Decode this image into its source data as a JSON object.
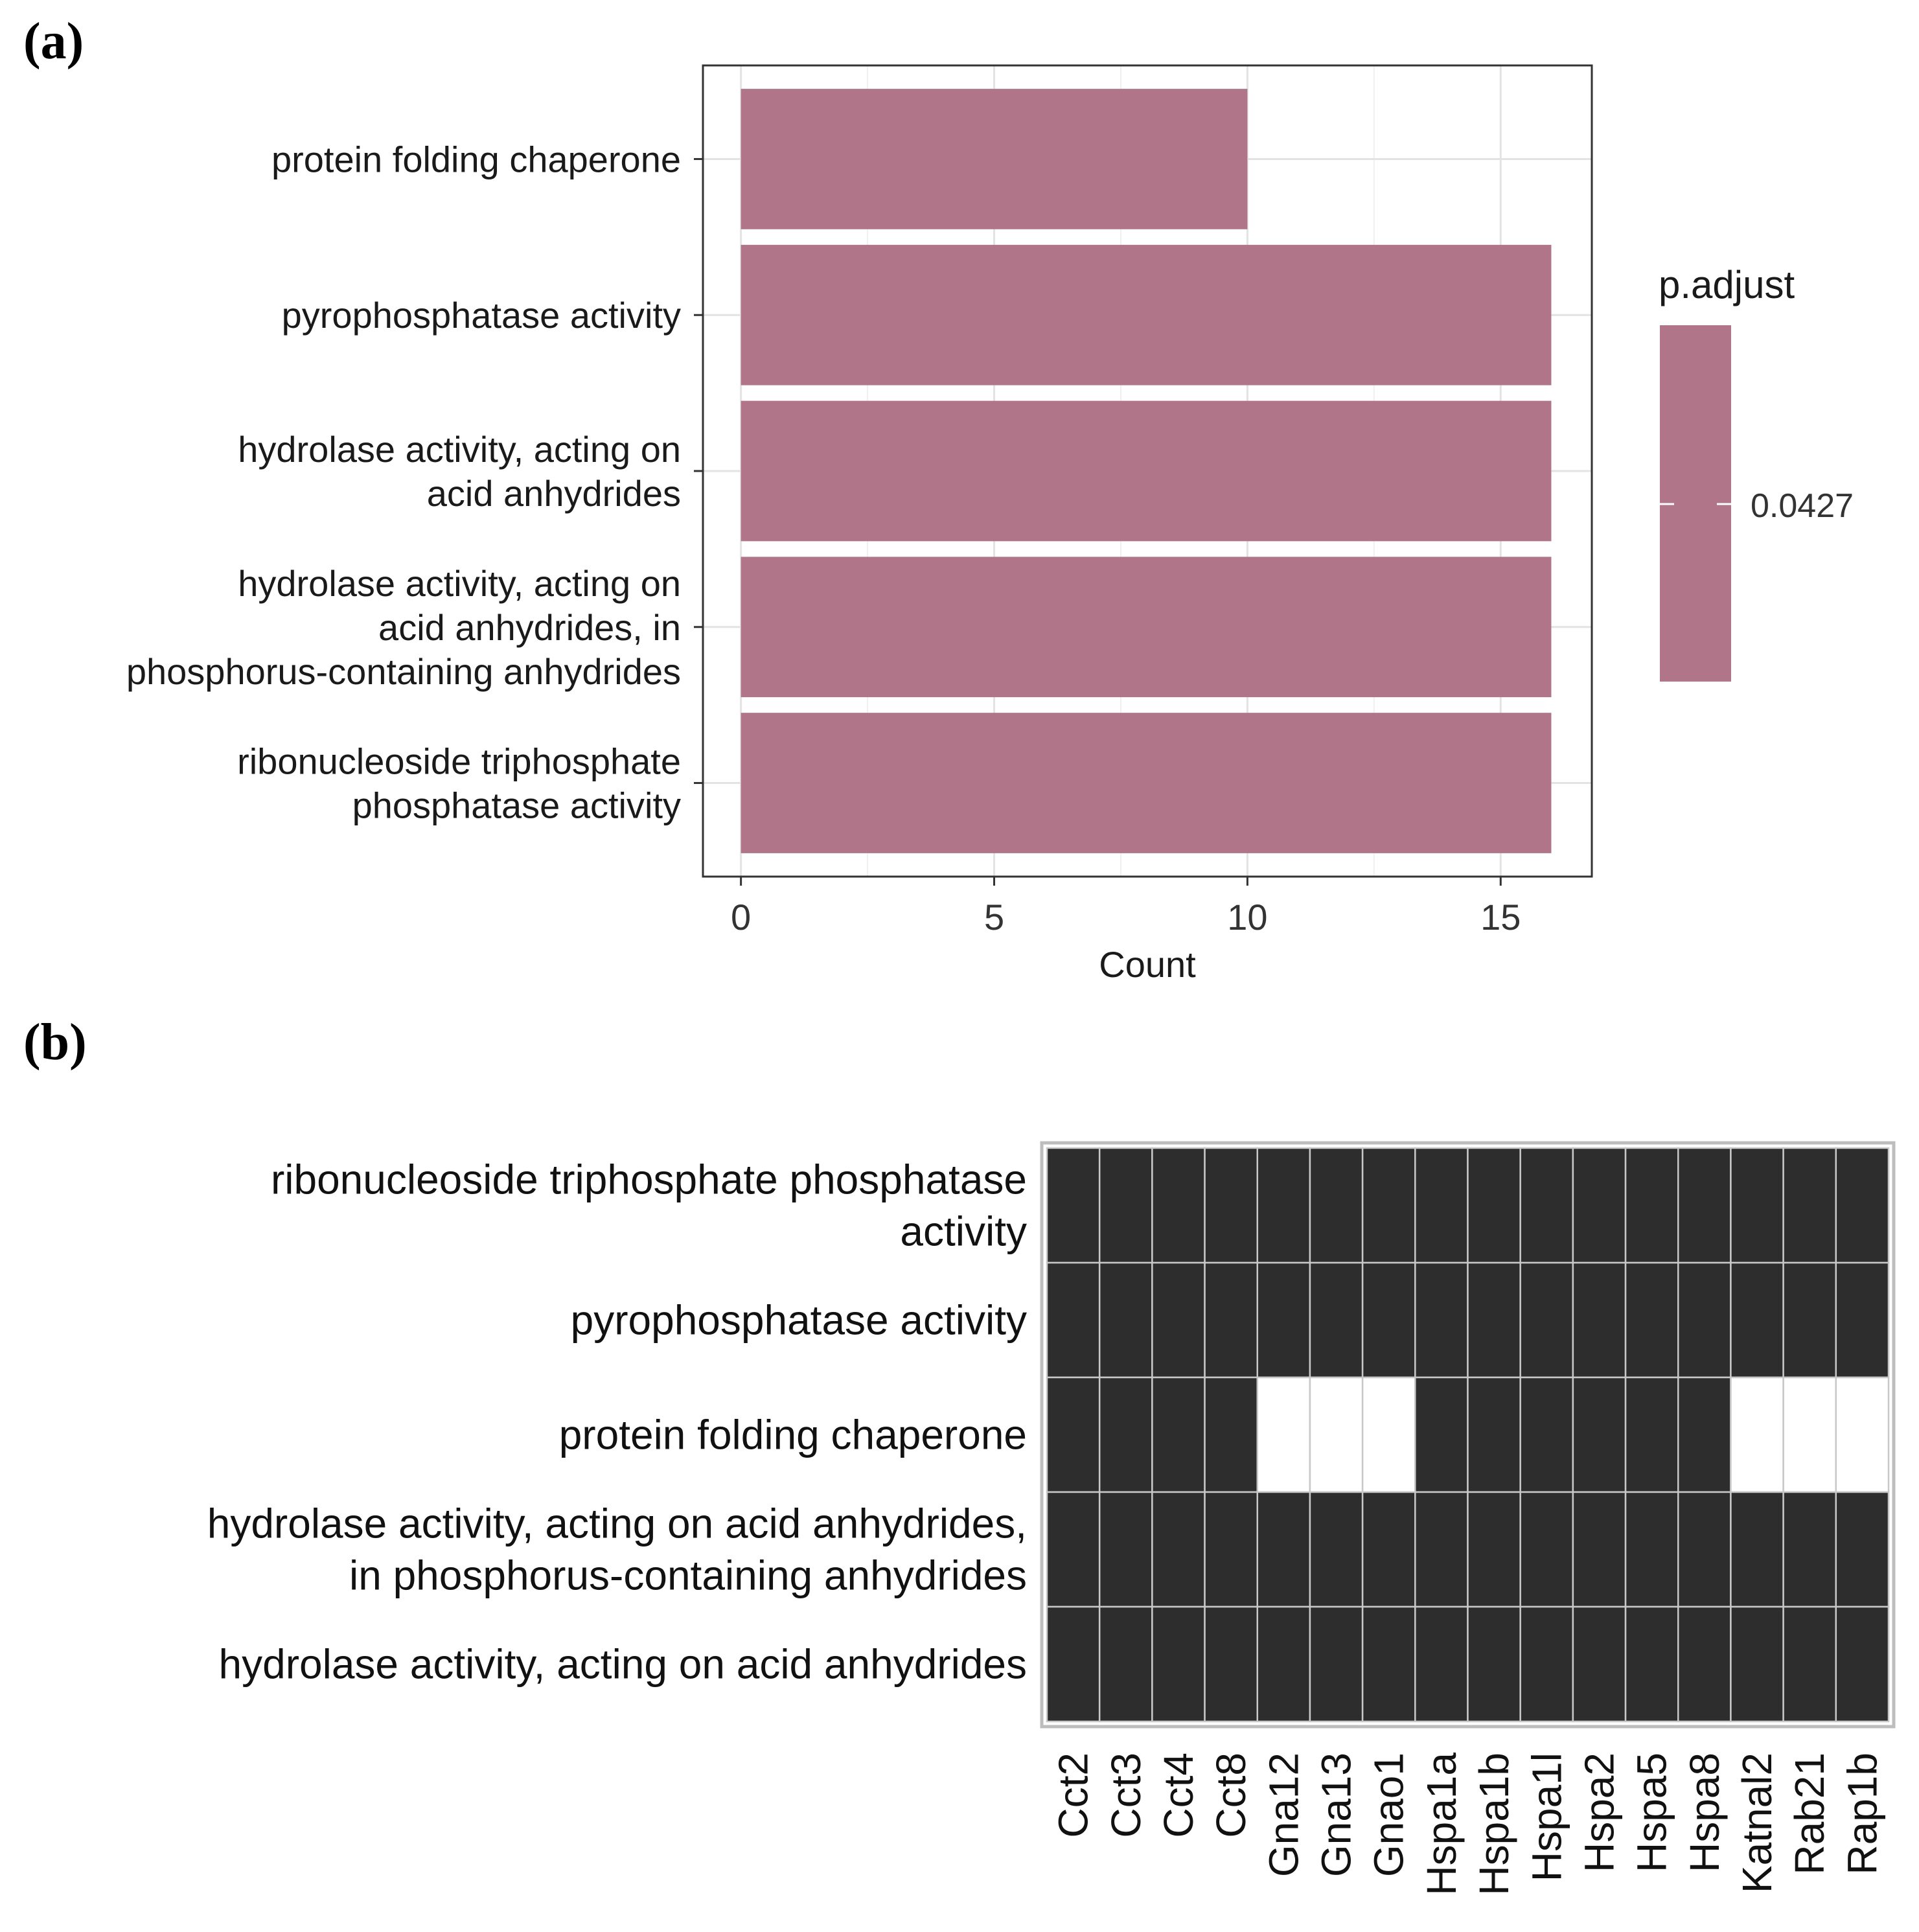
{
  "panels": {
    "a_label": "(a)",
    "b_label": "(b)"
  },
  "chart_data": [
    {
      "type": "bar",
      "orientation": "horizontal",
      "categories": [
        [
          "protein folding chaperone"
        ],
        [
          "pyrophosphatase activity"
        ],
        [
          "hydrolase activity, acting on",
          "acid anhydrides"
        ],
        [
          "hydrolase activity, acting on",
          "acid anhydrides, in",
          "phosphorus-containing anhydrides"
        ],
        [
          "ribonucleoside triphosphate",
          "phosphatase activity"
        ]
      ],
      "values": [
        10,
        16,
        16,
        16,
        16
      ],
      "xlabel": "Count",
      "ylabel": "",
      "xlim": [
        -0.75,
        16.8
      ],
      "xticks": [
        "0",
        "5",
        "10",
        "15"
      ],
      "xtick_values": [
        0,
        5,
        10,
        15
      ],
      "grid": true,
      "bar_color": "#b07589",
      "legend": {
        "title": "p.adjust",
        "label": "0.0427",
        "placement": "right",
        "color": "#b07589"
      }
    },
    {
      "type": "heatmap",
      "rows": [
        [
          "ribonucleoside triphosphate phosphatase",
          "activity"
        ],
        [
          "pyrophosphatase activity"
        ],
        [
          "protein folding chaperone"
        ],
        [
          "hydrolase activity, acting on acid anhydrides,",
          "in phosphorus-containing anhydrides"
        ],
        [
          "hydrolase activity, acting on acid anhydrides"
        ]
      ],
      "columns": [
        "Cct2",
        "Cct3",
        "Cct4",
        "Cct8",
        "Gna12",
        "Gna13",
        "Gnao1",
        "Hspa1a",
        "Hspa1b",
        "Hspa1l",
        "Hspa2",
        "Hspa5",
        "Hspa8",
        "Katnal2",
        "Rab21",
        "Rap1b"
      ],
      "values": [
        [
          1,
          1,
          1,
          1,
          1,
          1,
          1,
          1,
          1,
          1,
          1,
          1,
          1,
          1,
          1,
          1
        ],
        [
          1,
          1,
          1,
          1,
          1,
          1,
          1,
          1,
          1,
          1,
          1,
          1,
          1,
          1,
          1,
          1
        ],
        [
          1,
          1,
          1,
          1,
          0,
          0,
          0,
          1,
          1,
          1,
          1,
          1,
          1,
          0,
          0,
          0
        ],
        [
          1,
          1,
          1,
          1,
          1,
          1,
          1,
          1,
          1,
          1,
          1,
          1,
          1,
          1,
          1,
          1
        ],
        [
          1,
          1,
          1,
          1,
          1,
          1,
          1,
          1,
          1,
          1,
          1,
          1,
          1,
          1,
          1,
          1
        ]
      ],
      "present_color": "#2d2d2d",
      "absent_color": "#ffffff",
      "grid_color": "#c8c8c8"
    }
  ]
}
